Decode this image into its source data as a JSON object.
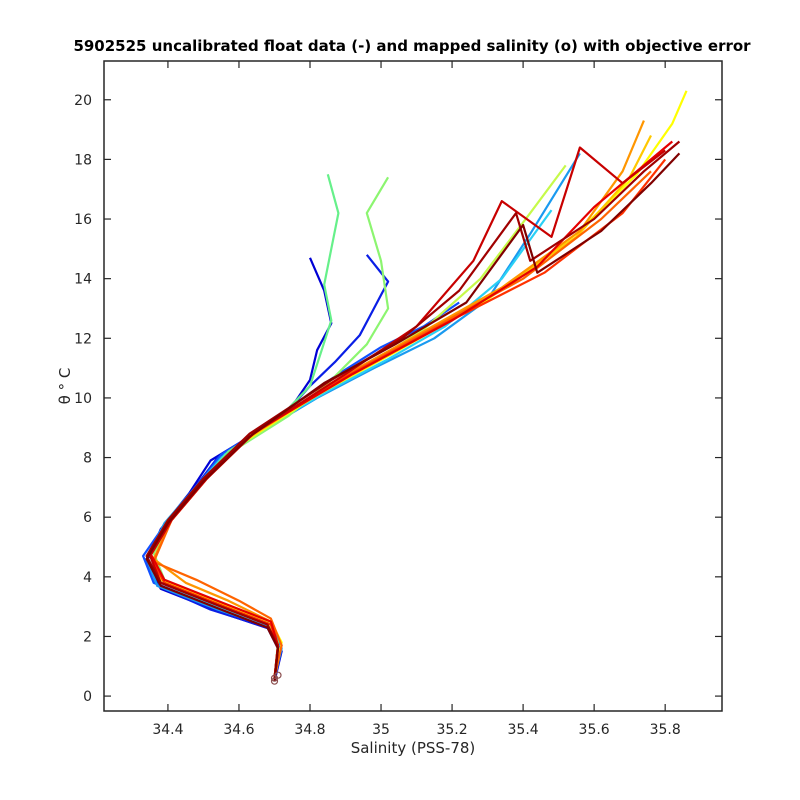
{
  "chart_data": {
    "type": "line",
    "title": "5902525 uncalibrated float data (-) and mapped salinity (o) with objective error",
    "xlabel": "Salinity (PSS-78)",
    "ylabel": "θ ° C",
    "xlim": [
      34.22,
      35.96
    ],
    "ylim": [
      -0.5,
      21.3
    ],
    "xticks": [
      "34.4",
      "34.6",
      "34.8",
      "35",
      "35.2",
      "35.4",
      "35.6",
      "35.8"
    ],
    "xtick_values": [
      34.4,
      34.6,
      34.8,
      35.0,
      35.2,
      35.4,
      35.6,
      35.8
    ],
    "yticks": [
      "0",
      "2",
      "4",
      "6",
      "8",
      "10",
      "12",
      "14",
      "16",
      "18",
      "20"
    ],
    "ytick_values": [
      0,
      2,
      4,
      6,
      8,
      10,
      12,
      14,
      16,
      18,
      20
    ],
    "grid": false,
    "colormap": "jet (blue = early profiles, dark red = late profiles)",
    "series": [
      {
        "color": "#0000d5",
        "values": [
          [
            34.7,
            0.5
          ],
          [
            34.72,
            1.5
          ],
          [
            34.7,
            2.2
          ],
          [
            34.55,
            2.8
          ],
          [
            34.38,
            3.6
          ],
          [
            34.34,
            4.5
          ],
          [
            34.38,
            5.6
          ],
          [
            34.46,
            6.8
          ],
          [
            34.52,
            7.9
          ],
          [
            34.63,
            8.7
          ],
          [
            34.72,
            9.4
          ],
          [
            34.76,
            9.9
          ],
          [
            34.8,
            10.6
          ],
          [
            34.82,
            11.6
          ],
          [
            34.86,
            12.5
          ],
          [
            34.84,
            13.6
          ],
          [
            34.8,
            14.7
          ]
        ]
      },
      {
        "color": "#0a1ee6",
        "values": [
          [
            34.7,
            0.6
          ],
          [
            34.71,
            1.6
          ],
          [
            34.68,
            2.3
          ],
          [
            34.52,
            2.9
          ],
          [
            34.37,
            3.7
          ],
          [
            34.34,
            4.6
          ],
          [
            34.39,
            5.7
          ],
          [
            34.47,
            6.9
          ],
          [
            34.54,
            8.0
          ],
          [
            34.65,
            8.8
          ],
          [
            34.74,
            9.6
          ],
          [
            34.8,
            10.4
          ],
          [
            34.87,
            11.2
          ],
          [
            34.94,
            12.1
          ],
          [
            34.98,
            13.0
          ],
          [
            35.02,
            13.9
          ],
          [
            34.96,
            14.8
          ]
        ]
      },
      {
        "color": "#1050ff",
        "values": [
          [
            34.7,
            0.55
          ],
          [
            34.72,
            1.7
          ],
          [
            34.69,
            2.4
          ],
          [
            34.53,
            3.0
          ],
          [
            34.36,
            3.8
          ],
          [
            34.33,
            4.7
          ],
          [
            34.4,
            5.9
          ],
          [
            34.48,
            7.0
          ],
          [
            34.55,
            8.1
          ],
          [
            34.67,
            9.0
          ],
          [
            34.77,
            9.9
          ],
          [
            34.88,
            10.8
          ],
          [
            35.0,
            11.7
          ],
          [
            35.12,
            12.4
          ],
          [
            35.22,
            13.2
          ]
        ]
      },
      {
        "color": "#1a9af0",
        "values": [
          [
            34.7,
            0.6
          ],
          [
            34.72,
            1.6
          ],
          [
            34.69,
            2.3
          ],
          [
            34.54,
            2.9
          ],
          [
            34.37,
            3.7
          ],
          [
            34.34,
            4.6
          ],
          [
            34.39,
            5.8
          ],
          [
            34.47,
            6.9
          ],
          [
            34.55,
            8.0
          ],
          [
            34.68,
            9.0
          ],
          [
            34.82,
            10.0
          ],
          [
            34.98,
            11.0
          ],
          [
            35.15,
            12.0
          ],
          [
            35.3,
            13.3
          ],
          [
            35.42,
            15.5
          ],
          [
            35.56,
            18.2
          ]
        ]
      },
      {
        "color": "#2ad0f5",
        "values": [
          [
            34.7,
            0.6
          ],
          [
            34.71,
            1.7
          ],
          [
            34.68,
            2.4
          ],
          [
            34.54,
            3.0
          ],
          [
            34.38,
            3.8
          ],
          [
            34.35,
            4.7
          ],
          [
            34.4,
            5.8
          ],
          [
            34.48,
            7.0
          ],
          [
            34.56,
            8.1
          ],
          [
            34.7,
            9.2
          ],
          [
            34.86,
            10.3
          ],
          [
            35.02,
            11.3
          ],
          [
            35.18,
            12.4
          ],
          [
            35.34,
            14.0
          ],
          [
            35.48,
            16.3
          ]
        ]
      },
      {
        "color": "#66f08a",
        "values": [
          [
            34.7,
            0.6
          ],
          [
            34.71,
            1.8
          ],
          [
            34.68,
            2.5
          ],
          [
            34.55,
            3.1
          ],
          [
            34.38,
            3.9
          ],
          [
            34.35,
            4.8
          ],
          [
            34.4,
            5.9
          ],
          [
            34.49,
            7.1
          ],
          [
            34.57,
            8.2
          ],
          [
            34.72,
            9.4
          ],
          [
            34.8,
            10.4
          ],
          [
            34.83,
            11.5
          ],
          [
            34.86,
            12.6
          ],
          [
            34.84,
            13.8
          ],
          [
            34.86,
            15.0
          ],
          [
            34.88,
            16.2
          ],
          [
            34.85,
            17.5
          ]
        ]
      },
      {
        "color": "#8cf570",
        "values": [
          [
            34.7,
            0.6
          ],
          [
            34.71,
            1.7
          ],
          [
            34.69,
            2.4
          ],
          [
            34.56,
            3.0
          ],
          [
            34.39,
            3.9
          ],
          [
            34.36,
            4.8
          ],
          [
            34.41,
            5.9
          ],
          [
            34.49,
            7.1
          ],
          [
            34.58,
            8.2
          ],
          [
            34.74,
            9.4
          ],
          [
            34.86,
            10.6
          ],
          [
            34.96,
            11.8
          ],
          [
            35.02,
            13.0
          ],
          [
            35.0,
            14.6
          ],
          [
            34.96,
            16.2
          ],
          [
            35.02,
            17.4
          ]
        ]
      },
      {
        "color": "#c6fa4a",
        "values": [
          [
            34.7,
            0.6
          ],
          [
            34.71,
            1.7
          ],
          [
            34.68,
            2.5
          ],
          [
            34.55,
            3.1
          ],
          [
            34.38,
            3.9
          ],
          [
            34.35,
            4.8
          ],
          [
            34.4,
            5.9
          ],
          [
            34.5,
            7.2
          ],
          [
            34.6,
            8.4
          ],
          [
            34.78,
            9.8
          ],
          [
            34.95,
            11.0
          ],
          [
            35.12,
            12.3
          ],
          [
            35.28,
            14.0
          ],
          [
            35.42,
            16.2
          ],
          [
            35.52,
            17.8
          ]
        ]
      },
      {
        "color": "#ffff00",
        "values": [
          [
            34.7,
            0.6
          ],
          [
            34.72,
            1.8
          ],
          [
            34.69,
            2.5
          ],
          [
            34.55,
            3.1
          ],
          [
            34.38,
            3.9
          ],
          [
            34.35,
            4.8
          ],
          [
            34.41,
            6.0
          ],
          [
            34.5,
            7.2
          ],
          [
            34.61,
            8.5
          ],
          [
            34.82,
            10.1
          ],
          [
            35.05,
            11.6
          ],
          [
            35.3,
            13.3
          ],
          [
            35.55,
            15.5
          ],
          [
            35.72,
            17.5
          ],
          [
            35.82,
            19.2
          ],
          [
            35.86,
            20.3
          ]
        ]
      },
      {
        "color": "#ffc800",
        "values": [
          [
            34.7,
            0.6
          ],
          [
            34.71,
            1.7
          ],
          [
            34.69,
            2.4
          ],
          [
            34.56,
            3.0
          ],
          [
            34.39,
            3.8
          ],
          [
            34.35,
            4.7
          ],
          [
            34.41,
            5.9
          ],
          [
            34.5,
            7.2
          ],
          [
            34.62,
            8.6
          ],
          [
            34.84,
            10.3
          ],
          [
            35.08,
            11.9
          ],
          [
            35.32,
            13.5
          ],
          [
            35.55,
            15.4
          ],
          [
            35.7,
            17.4
          ],
          [
            35.76,
            18.8
          ]
        ]
      },
      {
        "color": "#ff9600",
        "values": [
          [
            34.7,
            0.6
          ],
          [
            34.71,
            1.7
          ],
          [
            34.69,
            2.5
          ],
          [
            34.57,
            3.2
          ],
          [
            34.45,
            3.8
          ],
          [
            34.36,
            4.6
          ],
          [
            34.41,
            5.9
          ],
          [
            34.51,
            7.3
          ],
          [
            34.63,
            8.7
          ],
          [
            34.86,
            10.5
          ],
          [
            35.1,
            12.1
          ],
          [
            35.34,
            13.7
          ],
          [
            35.56,
            15.6
          ],
          [
            35.68,
            17.6
          ],
          [
            35.74,
            19.3
          ]
        ]
      },
      {
        "color": "#ff6400",
        "values": [
          [
            34.7,
            0.6
          ],
          [
            34.72,
            1.7
          ],
          [
            34.69,
            2.6
          ],
          [
            34.6,
            3.2
          ],
          [
            34.48,
            3.9
          ],
          [
            34.36,
            4.5
          ],
          [
            34.41,
            5.9
          ],
          [
            34.51,
            7.3
          ],
          [
            34.64,
            8.8
          ],
          [
            34.88,
            10.6
          ],
          [
            35.14,
            12.3
          ],
          [
            35.4,
            14.0
          ],
          [
            35.62,
            16.0
          ],
          [
            35.76,
            17.6
          ]
        ]
      },
      {
        "color": "#ff3200",
        "values": [
          [
            34.7,
            0.6
          ],
          [
            34.71,
            1.7
          ],
          [
            34.69,
            2.4
          ],
          [
            34.56,
            3.0
          ],
          [
            34.39,
            3.8
          ],
          [
            34.35,
            4.7
          ],
          [
            34.41,
            5.9
          ],
          [
            34.51,
            7.3
          ],
          [
            34.64,
            8.8
          ],
          [
            34.9,
            10.7
          ],
          [
            35.18,
            12.5
          ],
          [
            35.46,
            14.2
          ],
          [
            35.68,
            16.2
          ],
          [
            35.8,
            18.0
          ]
        ]
      },
      {
        "color": "#e60000",
        "values": [
          [
            34.7,
            0.6
          ],
          [
            34.71,
            1.7
          ],
          [
            34.69,
            2.5
          ],
          [
            34.56,
            3.1
          ],
          [
            34.39,
            3.9
          ],
          [
            34.35,
            4.8
          ],
          [
            34.41,
            6.0
          ],
          [
            34.51,
            7.4
          ],
          [
            34.65,
            8.9
          ],
          [
            34.92,
            10.8
          ],
          [
            35.2,
            12.6
          ],
          [
            35.44,
            14.4
          ],
          [
            35.6,
            16.4
          ],
          [
            35.76,
            18.0
          ],
          [
            35.82,
            18.6
          ]
        ]
      },
      {
        "color": "#c80000",
        "values": [
          [
            34.7,
            0.6
          ],
          [
            34.71,
            1.7
          ],
          [
            34.68,
            2.4
          ],
          [
            34.55,
            3.0
          ],
          [
            34.38,
            3.8
          ],
          [
            34.35,
            4.7
          ],
          [
            34.41,
            5.9
          ],
          [
            34.51,
            7.3
          ],
          [
            34.64,
            8.8
          ],
          [
            34.9,
            10.8
          ],
          [
            35.1,
            12.4
          ],
          [
            35.26,
            14.6
          ],
          [
            35.34,
            16.6
          ],
          [
            35.48,
            15.4
          ],
          [
            35.56,
            18.4
          ],
          [
            35.68,
            17.2
          ],
          [
            35.8,
            18.3
          ]
        ]
      },
      {
        "color": "#a00000",
        "values": [
          [
            34.7,
            0.5
          ],
          [
            34.71,
            1.6
          ],
          [
            34.68,
            2.4
          ],
          [
            34.55,
            3.0
          ],
          [
            34.38,
            3.8
          ],
          [
            34.34,
            4.7
          ],
          [
            34.4,
            5.9
          ],
          [
            34.5,
            7.3
          ],
          [
            34.63,
            8.8
          ],
          [
            34.86,
            10.6
          ],
          [
            35.06,
            12.0
          ],
          [
            35.22,
            13.6
          ],
          [
            35.38,
            16.2
          ],
          [
            35.42,
            14.6
          ],
          [
            35.6,
            16.0
          ],
          [
            35.74,
            17.6
          ],
          [
            35.84,
            18.6
          ]
        ]
      },
      {
        "color": "#800000",
        "values": [
          [
            34.7,
            0.5
          ],
          [
            34.71,
            1.6
          ],
          [
            34.68,
            2.3
          ],
          [
            34.55,
            2.9
          ],
          [
            34.38,
            3.7
          ],
          [
            34.34,
            4.6
          ],
          [
            34.4,
            5.8
          ],
          [
            34.5,
            7.2
          ],
          [
            34.63,
            8.7
          ],
          [
            34.84,
            10.5
          ],
          [
            35.04,
            11.8
          ],
          [
            35.24,
            13.2
          ],
          [
            35.4,
            15.8
          ],
          [
            35.44,
            14.2
          ],
          [
            35.62,
            15.6
          ],
          [
            35.76,
            17.2
          ],
          [
            35.84,
            18.2
          ]
        ]
      }
    ],
    "mapped_points": {
      "marker": "o",
      "color": "#8c5050",
      "values": [
        [
          34.7,
          0.5
        ],
        [
          34.7,
          0.6
        ],
        [
          34.71,
          0.7
        ]
      ]
    }
  }
}
